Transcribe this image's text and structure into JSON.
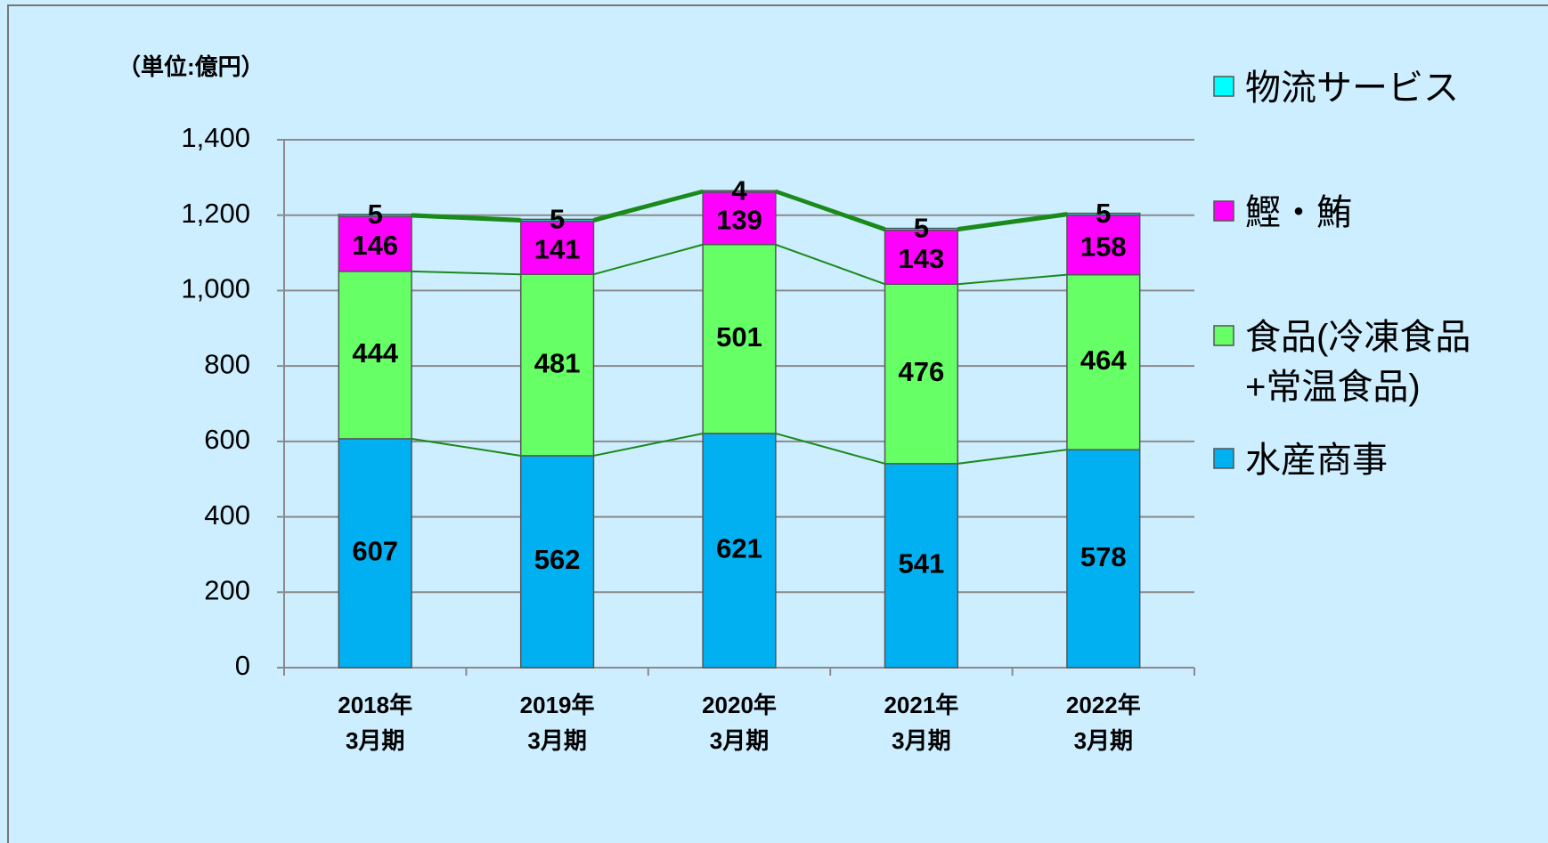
{
  "chart_data": {
    "type": "stacked_bar",
    "unit_label": "（単位:億円）",
    "categories": [
      "2018年\n3月期",
      "2019年\n3月期",
      "2020年\n3月期",
      "2021年\n3月期",
      "2022年\n3月期"
    ],
    "series": [
      {
        "name": "水産商事",
        "color": "#00b0f0",
        "values": [
          607,
          562,
          621,
          541,
          578
        ]
      },
      {
        "name": "食品(冷凍食品\n+常温食品)",
        "color": "#66ff66",
        "values": [
          444,
          481,
          501,
          476,
          464
        ]
      },
      {
        "name": "鰹・鮪",
        "color": "#ff00ff",
        "values": [
          146,
          141,
          139,
          143,
          158
        ]
      },
      {
        "name": "物流サービス",
        "color": "#00ffff",
        "values": [
          5,
          5,
          4,
          5,
          5
        ]
      }
    ],
    "ylim": [
      0,
      1400
    ],
    "yticks": [
      0,
      {
        "value": 200,
        "label": "200"
      },
      400,
      600,
      800,
      {
        "value": 1000,
        "label": "1,000"
      },
      {
        "value": 1200,
        "label": "1,200"
      },
      {
        "value": 1400,
        "label": "1,400"
      }
    ],
    "grid": true
  }
}
